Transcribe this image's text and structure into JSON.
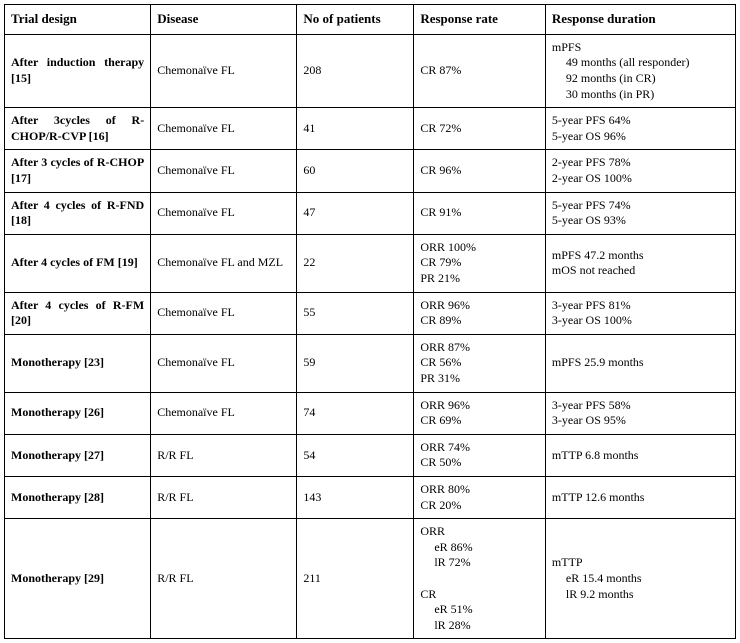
{
  "headers": {
    "col0": "Trial design",
    "col1": "Disease",
    "col2": "No of patients",
    "col3": "Response rate",
    "col4": "Response duration"
  },
  "rows": [
    {
      "trial": "After induction therapy [15]",
      "disease": "Chemonaïve FL",
      "patients": "208",
      "response": "CR 87%",
      "duration_header": "mPFS",
      "duration_lines": [
        "49 months (all responder)",
        "92 months (in CR)",
        "30 months (in PR)"
      ]
    },
    {
      "trial": "After 3cycles of R-CHOP/R-CVP [16]",
      "disease": "Chemonaïve FL",
      "patients": "41",
      "response": "CR 72%",
      "duration_plain": "5-year PFS 64%\n5-year OS 96%"
    },
    {
      "trial": "After 3 cycles of R-CHOP [17]",
      "disease": "Chemonaïve FL",
      "patients": "60",
      "response": "CR 96%",
      "duration_plain": "2-year PFS 78%\n2-year OS 100%"
    },
    {
      "trial": "After 4 cycles of R-FND [18]",
      "disease": "Chemonaïve FL",
      "patients": "47",
      "response": "CR 91%",
      "duration_plain": "5-year PFS 74%\n5-year OS 93%"
    },
    {
      "trial": "After 4 cycles of FM [19]",
      "disease": "Chemonaïve FL and MZL",
      "patients": "22",
      "response": "ORR 100%\nCR 79%\nPR 21%",
      "duration_plain": "mPFS 47.2 months\nmOS not reached"
    },
    {
      "trial": "After 4 cycles of R-FM [20]",
      "disease": "Chemonaïve FL",
      "patients": "55",
      "response": "ORR 96%\nCR 89%",
      "duration_plain": "3-year PFS 81%\n3-year OS 100%"
    },
    {
      "trial": "Monotherapy [23]",
      "disease": "Chemonaïve FL",
      "patients": "59",
      "response": "ORR 87%\nCR 56%\nPR 31%",
      "duration_plain": "mPFS 25.9 months"
    },
    {
      "trial": "Monotherapy [26]",
      "disease": "Chemonaïve FL",
      "patients": "74",
      "response": "ORR 96%\nCR 69%",
      "duration_plain": "3-year PFS 58%\n3-year OS 95%"
    },
    {
      "trial": "Monotherapy [27]",
      "disease": "R/R FL",
      "patients": "54",
      "response": "ORR 74%\nCR 50%",
      "duration_plain": "mTTP 6.8 months"
    },
    {
      "trial": "Monotherapy [28]",
      "disease": "R/R FL",
      "patients": "143",
      "response": "ORR 80%\nCR 20%",
      "duration_plain": "mTTP 12.6 months"
    },
    {
      "trial": "Monotherapy [29]",
      "disease": "R/R FL",
      "patients": "211",
      "response_groups": [
        {
          "label": "ORR",
          "lines": [
            "eR 86%",
            "lR 72%"
          ]
        },
        {
          "label": "CR",
          "lines": [
            "eR 51%",
            "lR 28%"
          ]
        }
      ],
      "duration_header": "mTTP",
      "duration_lines": [
        "eR 15.4 months",
        "lR 9.2 months"
      ]
    }
  ]
}
